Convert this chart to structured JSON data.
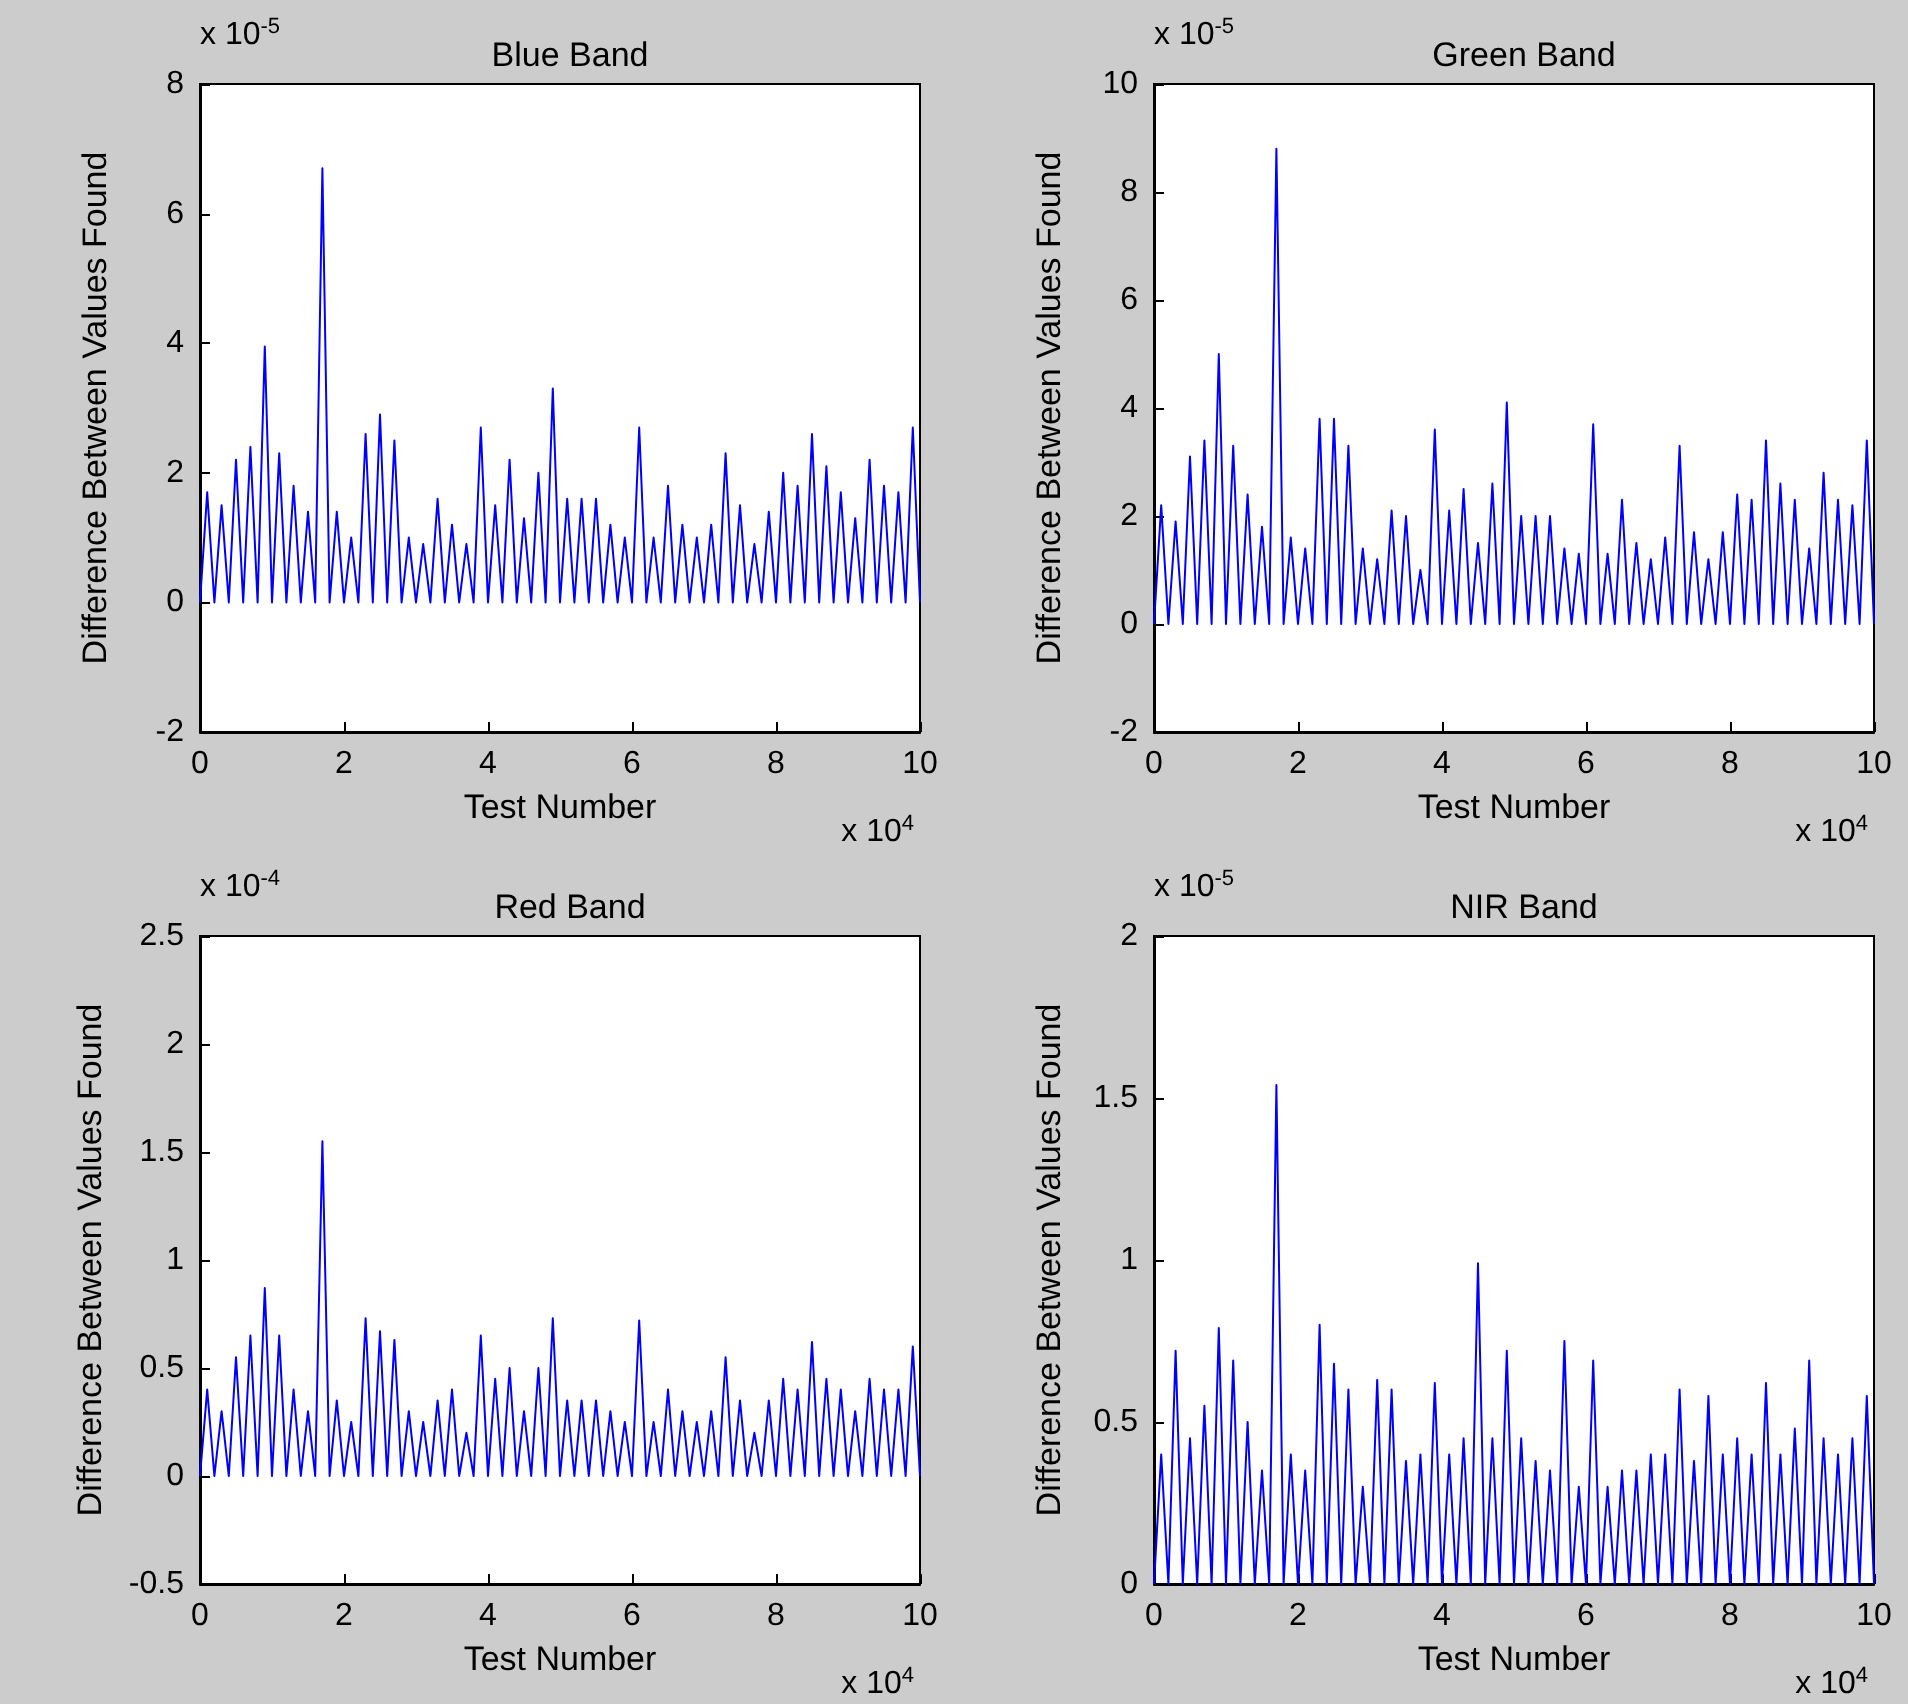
{
  "chart_data": [
    {
      "type": "line",
      "title": "Blue Band",
      "xlabel": "Test Number",
      "ylabel": "Difference Between Values Found",
      "annotations": [
        "x 10$^{-5}$",
        "x 10$^{4}$"
      ],
      "xlim": [
        0,
        10
      ],
      "xticks": [
        0,
        2,
        4,
        6,
        8,
        10
      ],
      "ylim": [
        -2,
        8
      ],
      "yticks": [
        -2,
        0,
        2,
        4,
        6,
        8
      ],
      "grid": false,
      "x": [
        0,
        0.1,
        0.2,
        0.3,
        0.4,
        0.5,
        0.6,
        0.7,
        0.8,
        0.9,
        1,
        1.1,
        1.2,
        1.3,
        1.4,
        1.5,
        1.6,
        1.7,
        1.8,
        1.9,
        2,
        2.1,
        2.2,
        2.3,
        2.4,
        2.5,
        2.6,
        2.7,
        2.8,
        2.9,
        3,
        3.1,
        3.2,
        3.3,
        3.4,
        3.5,
        3.6,
        3.7,
        3.8,
        3.9,
        4,
        4.1,
        4.2,
        4.3,
        4.4,
        4.5,
        4.6,
        4.7,
        4.8,
        4.9,
        5,
        5.1,
        5.2,
        5.3,
        5.4,
        5.5,
        5.6,
        5.7,
        5.8,
        5.9,
        6,
        6.1,
        6.2,
        6.3,
        6.4,
        6.5,
        6.6,
        6.7,
        6.8,
        6.9,
        7,
        7.1,
        7.2,
        7.3,
        7.4,
        7.5,
        7.6,
        7.7,
        7.8,
        7.9,
        8,
        8.1,
        8.2,
        8.3,
        8.4,
        8.5,
        8.6,
        8.7,
        8.8,
        8.9,
        9,
        9.1,
        9.2,
        9.3,
        9.4,
        9.5,
        9.6,
        9.7,
        9.8,
        9.9,
        10
      ],
      "series": [
        {
          "color": "#0000ff",
          "values": [
            0,
            1.7,
            0,
            1.5,
            0,
            2.2,
            0,
            2.4,
            0,
            3.95,
            0,
            2.3,
            0,
            1.8,
            0,
            1.4,
            0,
            6.7,
            0,
            1.4,
            0,
            1.0,
            0,
            2.6,
            0,
            2.9,
            0,
            2.5,
            0,
            1.0,
            0,
            0.9,
            0,
            1.6,
            0,
            1.2,
            0,
            0.9,
            0,
            2.7,
            0,
            1.5,
            0,
            2.2,
            0,
            1.3,
            0,
            2.0,
            0,
            3.3,
            0,
            1.6,
            0,
            1.6,
            0,
            1.6,
            0,
            1.2,
            0,
            1.0,
            0,
            2.7,
            0,
            1.0,
            0,
            1.8,
            0,
            1.2,
            0,
            1.0,
            0,
            1.2,
            0,
            2.3,
            0,
            1.5,
            0,
            0.9,
            0,
            1.4,
            0,
            2.0,
            0,
            1.8,
            0,
            2.6,
            0,
            2.1,
            0,
            1.7,
            0,
            1.3,
            0,
            2.2,
            0,
            1.8,
            0,
            1.7,
            0,
            2.7,
            0
          ]
        }
      ]
    },
    {
      "type": "line",
      "title": "Green Band",
      "xlabel": "Test Number",
      "ylabel": "Difference Between Values Found",
      "annotations": [
        "x 10$^{-5}$",
        "x 10$^{4}$"
      ],
      "xlim": [
        0,
        10
      ],
      "xticks": [
        0,
        2,
        4,
        6,
        8,
        10
      ],
      "ylim": [
        -2,
        10
      ],
      "yticks": [
        -2,
        0,
        2,
        4,
        6,
        8,
        10
      ],
      "grid": false,
      "x": [
        0,
        0.1,
        0.2,
        0.3,
        0.4,
        0.5,
        0.6,
        0.7,
        0.8,
        0.9,
        1,
        1.1,
        1.2,
        1.3,
        1.4,
        1.5,
        1.6,
        1.7,
        1.8,
        1.9,
        2,
        2.1,
        2.2,
        2.3,
        2.4,
        2.5,
        2.6,
        2.7,
        2.8,
        2.9,
        3,
        3.1,
        3.2,
        3.3,
        3.4,
        3.5,
        3.6,
        3.7,
        3.8,
        3.9,
        4,
        4.1,
        4.2,
        4.3,
        4.4,
        4.5,
        4.6,
        4.7,
        4.8,
        4.9,
        5,
        5.1,
        5.2,
        5.3,
        5.4,
        5.5,
        5.6,
        5.7,
        5.8,
        5.9,
        6,
        6.1,
        6.2,
        6.3,
        6.4,
        6.5,
        6.6,
        6.7,
        6.8,
        6.9,
        7,
        7.1,
        7.2,
        7.3,
        7.4,
        7.5,
        7.6,
        7.7,
        7.8,
        7.9,
        8,
        8.1,
        8.2,
        8.3,
        8.4,
        8.5,
        8.6,
        8.7,
        8.8,
        8.9,
        9,
        9.1,
        9.2,
        9.3,
        9.4,
        9.5,
        9.6,
        9.7,
        9.8,
        9.9,
        10
      ],
      "series": [
        {
          "color": "#0000ff",
          "values": [
            0,
            2.2,
            0,
            1.9,
            0,
            3.1,
            0,
            3.4,
            0,
            5.0,
            0,
            3.3,
            0,
            2.4,
            0,
            1.8,
            0,
            8.8,
            0,
            1.6,
            0,
            1.4,
            0,
            3.8,
            0,
            3.8,
            0,
            3.3,
            0,
            1.4,
            0,
            1.2,
            0,
            2.1,
            0,
            2.0,
            0,
            1.0,
            0,
            3.6,
            0,
            2.1,
            0,
            2.5,
            0,
            1.5,
            0,
            2.6,
            0,
            4.1,
            0,
            2.0,
            0,
            2.0,
            0,
            2.0,
            0,
            1.4,
            0,
            1.3,
            0,
            3.7,
            0,
            1.3,
            0,
            2.3,
            0,
            1.5,
            0,
            1.2,
            0,
            1.6,
            0,
            3.3,
            0,
            1.7,
            0,
            1.2,
            0,
            1.7,
            0,
            2.4,
            0,
            2.3,
            0,
            3.4,
            0,
            2.6,
            0,
            2.3,
            0,
            1.4,
            0,
            2.8,
            0,
            2.3,
            0,
            2.2,
            0,
            3.4,
            0
          ]
        }
      ]
    },
    {
      "type": "line",
      "title": "Red Band",
      "xlabel": "Test Number",
      "ylabel": "Difference Between Values Found",
      "annotations": [
        "x 10$^{-4}$",
        "x 10$^{4}$"
      ],
      "xlim": [
        0,
        10
      ],
      "xticks": [
        0,
        2,
        4,
        6,
        8,
        10
      ],
      "ylim": [
        -0.5,
        2.5
      ],
      "yticks": [
        -0.5,
        0,
        0.5,
        1,
        1.5,
        2,
        2.5
      ],
      "grid": false,
      "x": [
        0,
        0.1,
        0.2,
        0.3,
        0.4,
        0.5,
        0.6,
        0.7,
        0.8,
        0.9,
        1,
        1.1,
        1.2,
        1.3,
        1.4,
        1.5,
        1.6,
        1.7,
        1.8,
        1.9,
        2,
        2.1,
        2.2,
        2.3,
        2.4,
        2.5,
        2.6,
        2.7,
        2.8,
        2.9,
        3,
        3.1,
        3.2,
        3.3,
        3.4,
        3.5,
        3.6,
        3.7,
        3.8,
        3.9,
        4,
        4.1,
        4.2,
        4.3,
        4.4,
        4.5,
        4.6,
        4.7,
        4.8,
        4.9,
        5,
        5.1,
        5.2,
        5.3,
        5.4,
        5.5,
        5.6,
        5.7,
        5.8,
        5.9,
        6,
        6.1,
        6.2,
        6.3,
        6.4,
        6.5,
        6.6,
        6.7,
        6.8,
        6.9,
        7,
        7.1,
        7.2,
        7.3,
        7.4,
        7.5,
        7.6,
        7.7,
        7.8,
        7.9,
        8,
        8.1,
        8.2,
        8.3,
        8.4,
        8.5,
        8.6,
        8.7,
        8.8,
        8.9,
        9,
        9.1,
        9.2,
        9.3,
        9.4,
        9.5,
        9.6,
        9.7,
        9.8,
        9.9,
        10
      ],
      "series": [
        {
          "color": "#0000ff",
          "values": [
            0,
            0.4,
            0,
            0.3,
            0,
            0.55,
            0,
            0.65,
            0,
            0.87,
            0,
            0.65,
            0,
            0.4,
            0,
            0.3,
            0,
            1.55,
            0,
            0.35,
            0,
            0.25,
            0,
            0.73,
            0,
            0.67,
            0,
            0.63,
            0,
            0.3,
            0,
            0.25,
            0,
            0.35,
            0,
            0.4,
            0,
            0.2,
            0,
            0.65,
            0,
            0.45,
            0,
            0.5,
            0,
            0.3,
            0,
            0.5,
            0,
            0.73,
            0,
            0.35,
            0,
            0.35,
            0,
            0.35,
            0,
            0.3,
            0,
            0.25,
            0,
            0.72,
            0,
            0.25,
            0,
            0.4,
            0,
            0.3,
            0,
            0.25,
            0,
            0.3,
            0,
            0.55,
            0,
            0.35,
            0,
            0.2,
            0,
            0.35,
            0,
            0.45,
            0,
            0.4,
            0,
            0.62,
            0,
            0.45,
            0,
            0.4,
            0,
            0.3,
            0,
            0.45,
            0,
            0.4,
            0,
            0.4,
            0,
            0.6,
            0
          ]
        }
      ]
    },
    {
      "type": "line",
      "title": "NIR Band",
      "xlabel": "Test Number",
      "ylabel": "Difference Between Values Found",
      "annotations": [
        "x 10$^{-5}$",
        "x 10$^{4}$"
      ],
      "xlim": [
        0,
        10
      ],
      "xticks": [
        0,
        2,
        4,
        6,
        8,
        10
      ],
      "ylim": [
        0,
        2
      ],
      "yticks": [
        0,
        0.5,
        1,
        1.5,
        2
      ],
      "grid": false,
      "x": [
        0,
        0.1,
        0.2,
        0.3,
        0.4,
        0.5,
        0.6,
        0.7,
        0.8,
        0.9,
        1,
        1.1,
        1.2,
        1.3,
        1.4,
        1.5,
        1.6,
        1.7,
        1.8,
        1.9,
        2,
        2.1,
        2.2,
        2.3,
        2.4,
        2.5,
        2.6,
        2.7,
        2.8,
        2.9,
        3,
        3.1,
        3.2,
        3.3,
        3.4,
        3.5,
        3.6,
        3.7,
        3.8,
        3.9,
        4,
        4.1,
        4.2,
        4.3,
        4.4,
        4.5,
        4.6,
        4.7,
        4.8,
        4.9,
        5,
        5.1,
        5.2,
        5.3,
        5.4,
        5.5,
        5.6,
        5.7,
        5.8,
        5.9,
        6,
        6.1,
        6.2,
        6.3,
        6.4,
        6.5,
        6.6,
        6.7,
        6.8,
        6.9,
        7,
        7.1,
        7.2,
        7.3,
        7.4,
        7.5,
        7.6,
        7.7,
        7.8,
        7.9,
        8,
        8.1,
        8.2,
        8.3,
        8.4,
        8.5,
        8.6,
        8.7,
        8.8,
        8.9,
        9,
        9.1,
        9.2,
        9.3,
        9.4,
        9.5,
        9.6,
        9.7,
        9.8,
        9.9,
        10
      ],
      "series": [
        {
          "color": "#0000ff",
          "values": [
            0,
            0.4,
            0,
            0.72,
            0,
            0.45,
            0,
            0.55,
            0,
            0.79,
            0,
            0.69,
            0,
            0.5,
            0,
            0.35,
            0,
            1.54,
            0,
            0.4,
            0,
            0.35,
            0,
            0.8,
            0,
            0.68,
            0,
            0.6,
            0,
            0.3,
            0,
            0.63,
            0,
            0.6,
            0,
            0.38,
            0,
            0.4,
            0,
            0.62,
            0,
            0.4,
            0,
            0.45,
            0,
            0.99,
            0,
            0.45,
            0,
            0.72,
            0,
            0.45,
            0,
            0.38,
            0,
            0.35,
            0,
            0.75,
            0,
            0.3,
            0,
            0.69,
            0,
            0.3,
            0,
            0.35,
            0,
            0.35,
            0,
            0.4,
            0,
            0.4,
            0,
            0.6,
            0,
            0.38,
            0,
            0.58,
            0,
            0.4,
            0,
            0.45,
            0,
            0.4,
            0,
            0.62,
            0,
            0.4,
            0,
            0.48,
            0,
            0.69,
            0,
            0.45,
            0,
            0.4,
            0,
            0.45,
            0,
            0.58,
            0
          ]
        }
      ]
    }
  ]
}
